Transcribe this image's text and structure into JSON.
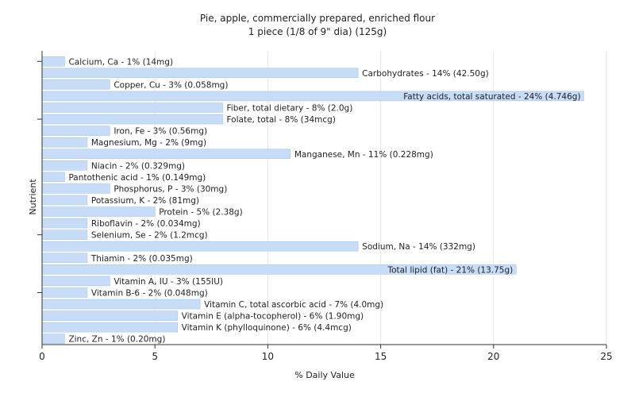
{
  "chart_data": {
    "type": "bar",
    "orientation": "horizontal",
    "title": "Pie, apple, commercially prepared, enriched flour",
    "subtitle": "1 piece (1/8 of 9\" dia) (125g)",
    "xlabel": "% Daily Value",
    "ylabel": "Nutrient",
    "xlim": [
      0,
      25
    ],
    "xticks": [
      0,
      5,
      10,
      15,
      20,
      25
    ],
    "grid": true,
    "bar_color": "#c6dcf7",
    "bar_edge_color": "#a9c6ea",
    "grid_color": "#e6e6e6",
    "categories": [
      "Calcium, Ca",
      "Carbohydrates",
      "Copper, Cu",
      "Fatty acids, total saturated",
      "Fiber, total dietary",
      "Folate, total",
      "Iron, Fe",
      "Magnesium, Mg",
      "Manganese, Mn",
      "Niacin",
      "Pantothenic acid",
      "Phosphorus, P",
      "Potassium, K",
      "Protein",
      "Riboflavin",
      "Selenium, Se",
      "Sodium, Na",
      "Thiamin",
      "Total lipid (fat)",
      "Vitamin A, IU",
      "Vitamin B-6",
      "Vitamin C, total ascorbic acid",
      "Vitamin E (alpha-tocopherol)",
      "Vitamin K (phylloquinone)",
      "Zinc, Zn"
    ],
    "values": [
      1,
      14,
      3,
      24,
      8,
      8,
      3,
      2,
      11,
      2,
      1,
      3,
      2,
      5,
      2,
      2,
      14,
      2,
      21,
      3,
      2,
      7,
      6,
      6,
      1
    ],
    "labels": [
      "Calcium, Ca - 1% (14mg)",
      "Carbohydrates - 14% (42.50g)",
      "Copper, Cu - 3% (0.058mg)",
      "Fatty acids, total saturated - 24% (4.746g)",
      "Fiber, total dietary - 8% (2.0g)",
      "Folate, total - 8% (34mcg)",
      "Iron, Fe - 3% (0.56mg)",
      "Magnesium, Mg - 2% (9mg)",
      "Manganese, Mn - 11% (0.228mg)",
      "Niacin - 2% (0.329mg)",
      "Pantothenic acid - 1% (0.149mg)",
      "Phosphorus, P - 3% (30mg)",
      "Potassium, K - 2% (81mg)",
      "Protein - 5% (2.38g)",
      "Riboflavin - 2% (0.034mg)",
      "Selenium, Se - 2% (1.2mcg)",
      "Sodium, Na - 14% (332mg)",
      "Thiamin - 2% (0.035mg)",
      "Total lipid (fat) - 21% (13.75g)",
      "Vitamin A, IU - 3% (155IU)",
      "Vitamin B-6 - 2% (0.048mg)",
      "Vitamin C, total ascorbic acid - 7% (4.0mg)",
      "Vitamin E (alpha-tocopherol) - 6% (1.90mg)",
      "Vitamin K (phylloquinone) - 6% (4.4mcg)",
      "Zinc, Zn - 1% (0.20mg)"
    ]
  }
}
